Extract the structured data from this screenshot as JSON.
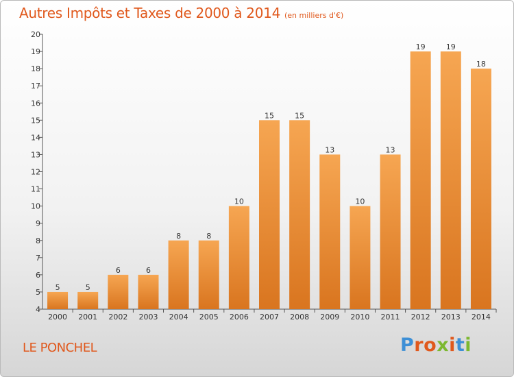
{
  "header": {
    "title": "Autres Impôts et Taxes de 2000 à 2014",
    "unit": "(en milliers d'€)"
  },
  "footer": {
    "commune": "LE PONCHEL",
    "brand_letters": [
      {
        "char": "P",
        "color": "#3d8fd6"
      },
      {
        "char": "r",
        "color": "#e0581c"
      },
      {
        "char": "o",
        "color": "#e0581c"
      },
      {
        "char": "x",
        "color": "#7cb82f"
      },
      {
        "char": "i",
        "color": "#e0581c"
      },
      {
        "char": "t",
        "color": "#3d8fd6"
      },
      {
        "char": "i",
        "color": "#7cb82f"
      }
    ]
  },
  "colors": {
    "title": "#e0581c",
    "bar_top": "#f6a652",
    "bar_bottom": "#d9751f"
  },
  "chart_data": {
    "type": "bar",
    "categories": [
      "2000",
      "2001",
      "2002",
      "2003",
      "2004",
      "2005",
      "2006",
      "2007",
      "2008",
      "2009",
      "2010",
      "2011",
      "2012",
      "2013",
      "2014"
    ],
    "values": [
      5,
      5,
      6,
      6,
      8,
      8,
      10,
      15,
      15,
      13,
      10,
      13,
      19,
      19,
      18
    ],
    "ylim": [
      4,
      20
    ],
    "yticks": [
      4,
      5,
      6,
      7,
      8,
      9,
      10,
      11,
      12,
      13,
      14,
      15,
      16,
      17,
      18,
      19,
      20
    ],
    "grid": false,
    "legend": "none"
  }
}
